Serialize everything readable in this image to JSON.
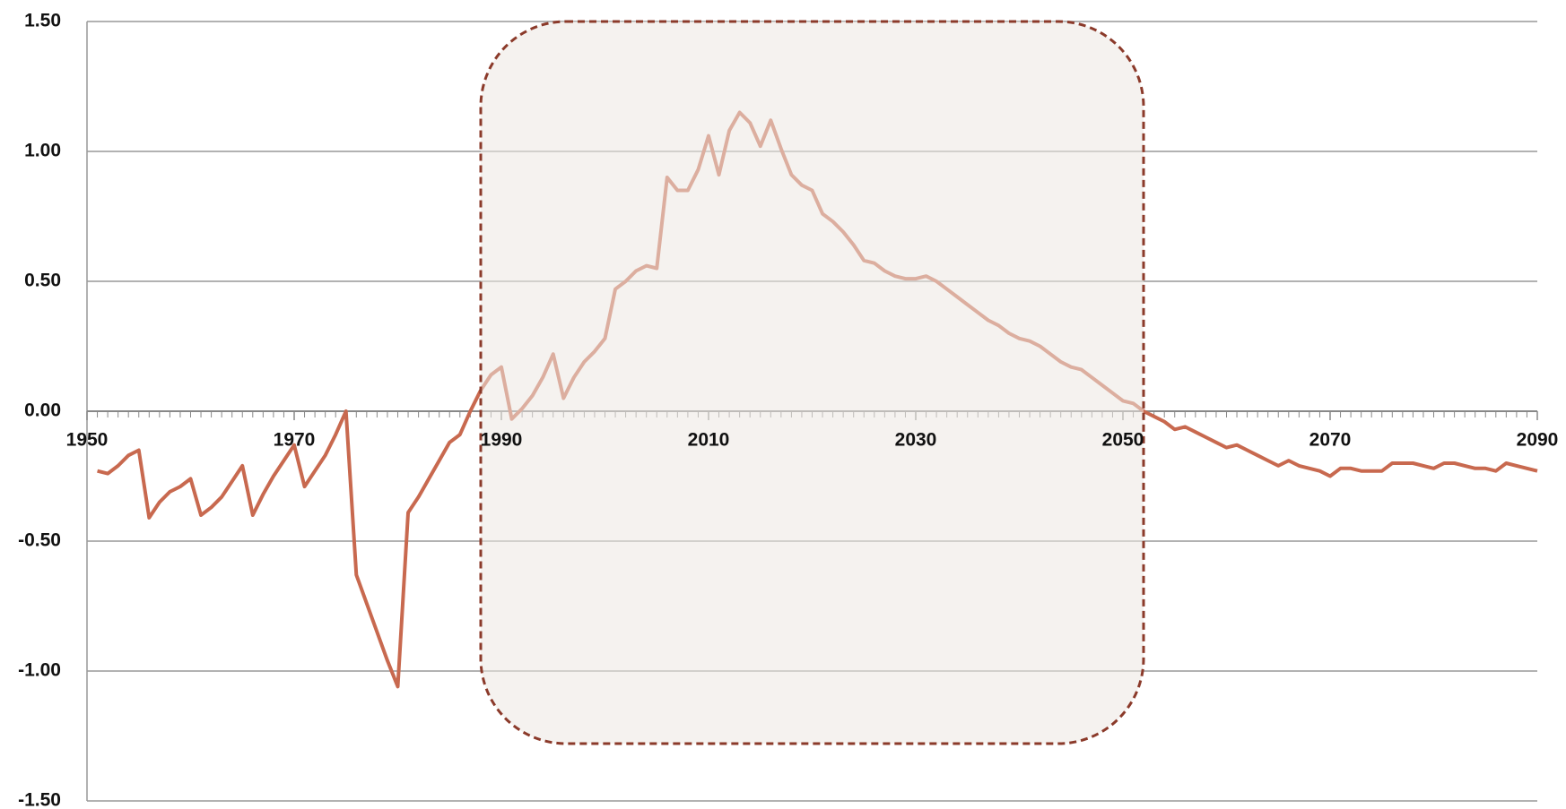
{
  "chart_data": {
    "type": "line",
    "x": [
      1951,
      1952,
      1953,
      1954,
      1955,
      1956,
      1957,
      1958,
      1959,
      1960,
      1961,
      1962,
      1963,
      1964,
      1965,
      1966,
      1967,
      1968,
      1969,
      1970,
      1971,
      1972,
      1973,
      1974,
      1975,
      1976,
      1977,
      1978,
      1979,
      1980,
      1981,
      1982,
      1983,
      1984,
      1985,
      1986,
      1987,
      1988,
      1989,
      1990,
      1991,
      1992,
      1993,
      1994,
      1995,
      1996,
      1997,
      1998,
      1999,
      2000,
      2001,
      2002,
      2003,
      2004,
      2005,
      2006,
      2007,
      2008,
      2009,
      2010,
      2011,
      2012,
      2013,
      2014,
      2015,
      2016,
      2017,
      2018,
      2019,
      2020,
      2021,
      2022,
      2023,
      2024,
      2025,
      2026,
      2027,
      2028,
      2029,
      2030,
      2031,
      2032,
      2033,
      2034,
      2035,
      2036,
      2037,
      2038,
      2039,
      2040,
      2041,
      2042,
      2043,
      2044,
      2045,
      2046,
      2047,
      2048,
      2049,
      2050,
      2051,
      2052,
      2053,
      2054,
      2055,
      2056,
      2057,
      2058,
      2059,
      2060,
      2061,
      2062,
      2063,
      2064,
      2065,
      2066,
      2067,
      2068,
      2069,
      2070,
      2071,
      2072,
      2073,
      2074,
      2075,
      2076,
      2077,
      2078,
      2079,
      2080,
      2081,
      2082,
      2083,
      2084,
      2085,
      2086,
      2087,
      2088,
      2089,
      2090
    ],
    "series": [
      {
        "color": "#c8694f",
        "values": [
          -0.23,
          -0.24,
          -0.21,
          -0.17,
          -0.15,
          -0.41,
          -0.35,
          -0.31,
          -0.29,
          -0.26,
          -0.4,
          -0.37,
          -0.33,
          -0.27,
          -0.21,
          -0.4,
          -0.32,
          -0.25,
          -0.19,
          -0.13,
          -0.29,
          -0.23,
          -0.17,
          -0.09,
          0.0,
          -0.63,
          -0.74,
          -0.85,
          -0.96,
          -1.06,
          -0.39,
          -0.33,
          -0.26,
          -0.19,
          -0.12,
          -0.09,
          0.0,
          0.08,
          0.14,
          0.17,
          -0.03,
          0.01,
          0.06,
          0.13,
          0.22,
          0.05,
          0.13,
          0.19,
          0.23,
          0.28,
          0.47,
          0.5,
          0.54,
          0.56,
          0.55,
          0.9,
          0.85,
          0.85,
          0.93,
          1.06,
          0.91,
          1.08,
          1.15,
          1.11,
          1.02,
          1.12,
          1.01,
          0.91,
          0.87,
          0.85,
          0.76,
          0.73,
          0.69,
          0.64,
          0.58,
          0.57,
          0.54,
          0.52,
          0.51,
          0.51,
          0.52,
          0.5,
          0.47,
          0.44,
          0.41,
          0.38,
          0.35,
          0.33,
          0.3,
          0.28,
          0.27,
          0.25,
          0.22,
          0.19,
          0.17,
          0.16,
          0.13,
          0.1,
          0.07,
          0.04,
          0.03,
          0.0,
          -0.02,
          -0.04,
          -0.07,
          -0.06,
          -0.08,
          -0.1,
          -0.12,
          -0.14,
          -0.13,
          -0.15,
          -0.17,
          -0.19,
          -0.21,
          -0.19,
          -0.21,
          -0.22,
          -0.23,
          -0.25,
          -0.22,
          -0.22,
          -0.23,
          -0.23,
          -0.23,
          -0.2,
          -0.2,
          -0.2,
          -0.21,
          -0.22,
          -0.2,
          -0.2,
          -0.21,
          -0.22,
          -0.22,
          -0.23,
          -0.2,
          -0.21,
          -0.22,
          -0.23
        ]
      }
    ],
    "xlim": [
      1950,
      2090
    ],
    "xticks": [
      1950,
      1970,
      1990,
      2010,
      2030,
      2050,
      2070,
      2090
    ],
    "minor_tick_step": 1,
    "ylim": [
      -1.5,
      1.5
    ],
    "yticks": [
      {
        "value": -1.5,
        "label": "-1.50"
      },
      {
        "value": -1,
        "label": "-1.00"
      },
      {
        "value": -0.5,
        "label": "-0.50"
      },
      {
        "value": 0,
        "label": "0.00"
      },
      {
        "value": 0.5,
        "label": "0.50"
      },
      {
        "value": 1,
        "label": "1.00"
      },
      {
        "value": 1.5,
        "label": "1.50"
      }
    ],
    "grid": true
  }
}
